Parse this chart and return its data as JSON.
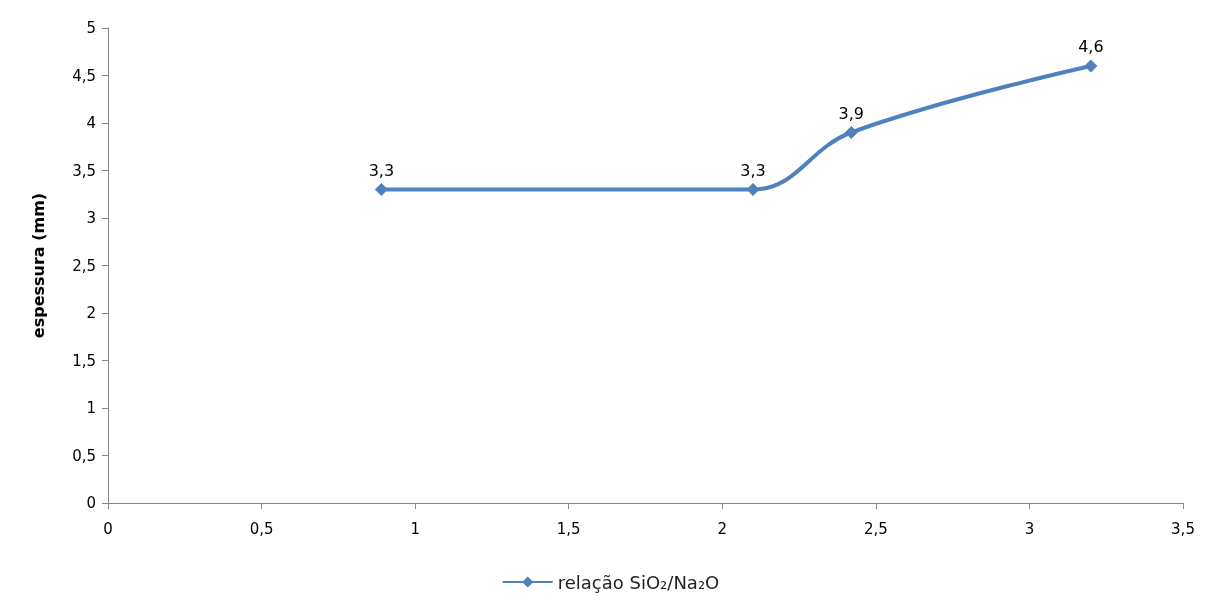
{
  "chart_data": {
    "type": "line",
    "ylabel": "espessura (mm)",
    "x": [
      0.89,
      2.1,
      2.42,
      3.2
    ],
    "series": [
      {
        "name": "relação SiO₂/Na₂O",
        "color": "#4f81bd",
        "values": [
          3.3,
          3.3,
          3.9,
          4.6
        ],
        "value_labels": [
          "3,3",
          "3,3",
          "3,9",
          "4,6"
        ]
      }
    ],
    "xlim": [
      0,
      3.5
    ],
    "xticks": [
      0,
      {
        "value": 0.5,
        "label": "0,5"
      },
      1,
      {
        "value": 1.5,
        "label": "1,5"
      },
      2,
      {
        "value": 2.5,
        "label": "2,5"
      },
      3,
      {
        "value": 3.5,
        "label": "3,5"
      }
    ],
    "ylim": [
      0,
      5
    ],
    "yticks": [
      0,
      {
        "value": 0.5,
        "label": "0,5"
      },
      1,
      {
        "value": 1.5,
        "label": "1,5"
      },
      2,
      {
        "value": 2.5,
        "label": "2,5"
      },
      3,
      {
        "value": 3.5,
        "label": "3,5"
      },
      4,
      {
        "value": 4.5,
        "label": "4,5"
      },
      5
    ],
    "grid": false,
    "legend": "bottom",
    "marker": "diamond",
    "line_style": "solid"
  }
}
